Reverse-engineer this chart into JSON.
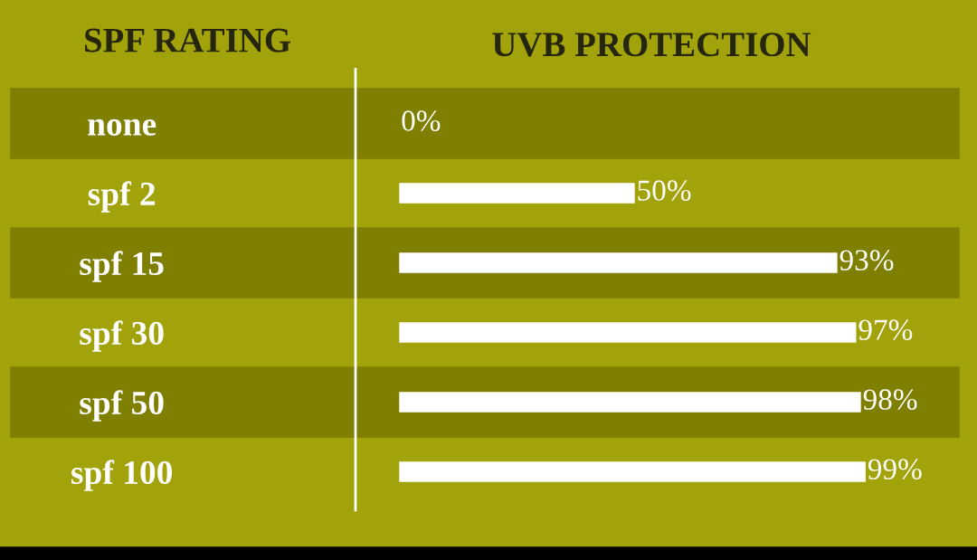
{
  "chart_data": {
    "type": "bar",
    "orientation": "horizontal",
    "title": "UVB PROTECTION",
    "ylabel": "SPF RATING",
    "categories": [
      "none",
      "spf 2",
      "spf 15",
      "spf 30",
      "spf 50",
      "spf 100"
    ],
    "values": [
      0,
      50,
      93,
      97,
      98,
      99
    ],
    "value_labels": [
      "0%",
      "50%",
      "93%",
      "97%",
      "98%",
      "99%"
    ],
    "color": "#ffffff",
    "grid": false,
    "legend": false
  }
}
